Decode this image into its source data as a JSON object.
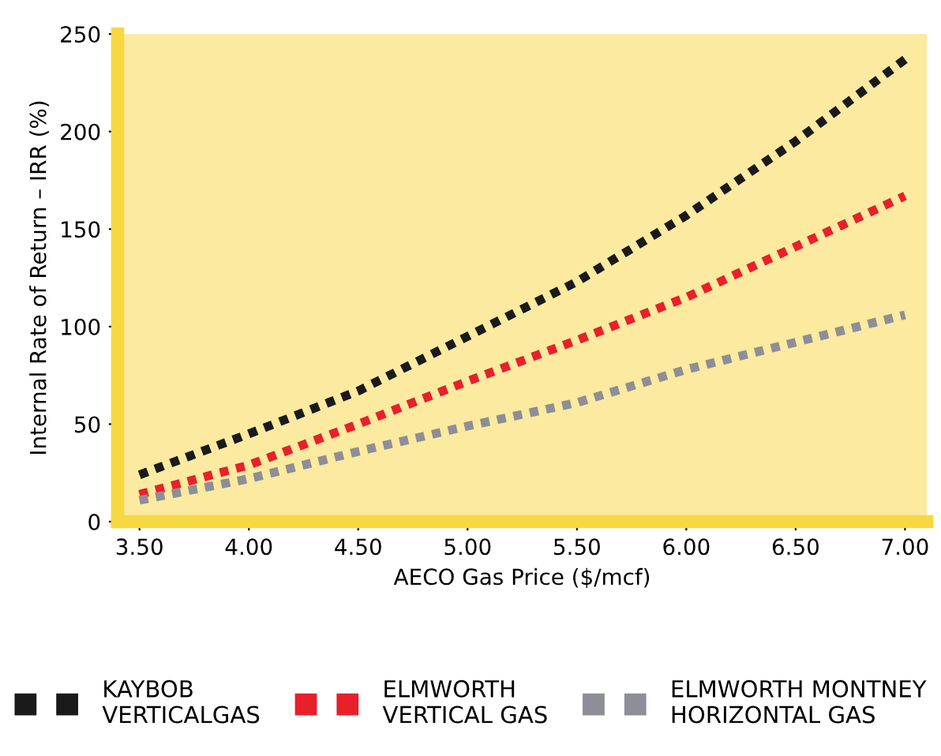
{
  "chart_data": {
    "type": "line",
    "xlabel": "AECO Gas Price ($/mcf)",
    "ylabel": "Internal Rate of Return – IRR (%)",
    "x": [
      3.5,
      4.0,
      4.5,
      5.0,
      5.5,
      6.0,
      6.5,
      7.0
    ],
    "series": [
      {
        "name": "KAYBOB\nVERTICALGAS",
        "color": "#1a1a1a",
        "values": [
          24,
          45,
          67,
          95,
          123,
          157,
          195,
          237
        ]
      },
      {
        "name": "ELMWORTH\nVERTICAL GAS",
        "color": "#e8202a",
        "values": [
          14,
          29,
          50,
          72,
          93,
          115,
          141,
          167
        ]
      },
      {
        "name": "ELMWORTH MONTNEY\nHORIZONTAL GAS",
        "color": "#8e8e96",
        "values": [
          11,
          22,
          36,
          49,
          61,
          78,
          92,
          106
        ]
      }
    ],
    "xlim": [
      3.4,
      7.1
    ],
    "ylim": [
      0,
      250
    ],
    "xticks": [
      {
        "value": 3.5,
        "label": "3.50"
      },
      {
        "value": 4.0,
        "label": "4.00"
      },
      {
        "value": 4.5,
        "label": "4.50"
      },
      {
        "value": 5.0,
        "label": "5.00"
      },
      {
        "value": 5.5,
        "label": "5.50"
      },
      {
        "value": 6.0,
        "label": "6.00"
      },
      {
        "value": 6.5,
        "label": "6.50"
      },
      {
        "value": 7.0,
        "label": "7.00"
      }
    ],
    "yticks": [
      0,
      50,
      100,
      150,
      200,
      250
    ],
    "grid": false,
    "legend": "bottom",
    "line_style": "dashed"
  }
}
